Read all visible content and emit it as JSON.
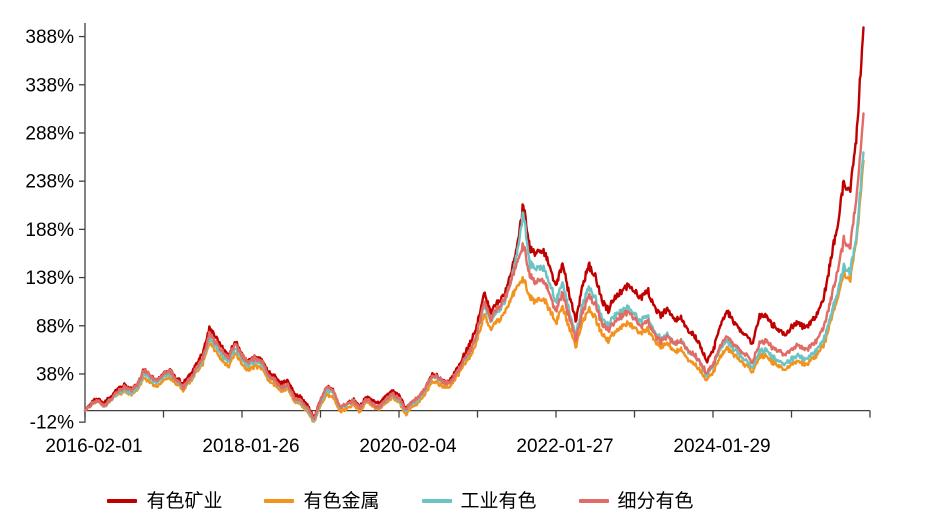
{
  "chart_data": {
    "type": "line",
    "title": "",
    "unit": "%",
    "y_axis": {
      "tick_labels": [
        "388%",
        "338%",
        "288%",
        "238%",
        "188%",
        "138%",
        "88%",
        "38%",
        "-12%"
      ],
      "tick_values": [
        388,
        338,
        288,
        238,
        188,
        138,
        88,
        38,
        -12
      ],
      "min": -12,
      "max": 400,
      "zero_baseline": true,
      "grid": false
    },
    "x_axis": {
      "tick_labels": [
        "2016-02-01",
        "2018-01-26",
        "2020-02-04",
        "2022-01-27",
        "2024-01-29"
      ],
      "labeled_tick_year_index": [
        0,
        2,
        4,
        6,
        8
      ],
      "minor_tick_count": 11,
      "range_note": "yearly minor ticks from 2016 to 2026, labels every second tick"
    },
    "sampling": {
      "start_month": "2016-02",
      "step": "monthly",
      "count": 120
    },
    "legend_position": "bottom",
    "series": [
      {
        "name": "有色矿业",
        "color": "#C00000",
        "values": [
          0,
          8,
          12,
          7,
          14,
          22,
          26,
          22,
          28,
          43,
          37,
          32,
          40,
          42,
          34,
          27,
          35,
          47,
          58,
          85,
          76,
          65,
          58,
          73,
          58,
          52,
          57,
          53,
          40,
          35,
          27,
          30,
          16,
          13,
          6,
          -8,
          12,
          26,
          21,
          4,
          8,
          12,
          4,
          14,
          9,
          7,
          14,
          20,
          16,
          2,
          10,
          14,
          24,
          38,
          36,
          30,
          33,
          44,
          58,
          70,
          90,
          122,
          100,
          112,
          118,
          140,
          168,
          216,
          170,
          162,
          166,
          150,
          128,
          152,
          120,
          92,
          128,
          150,
          140,
          115,
          105,
          118,
          124,
          130,
          122,
          116,
          124,
          106,
          98,
          104,
          94,
          97,
          86,
          80,
          70,
          52,
          62,
          88,
          103,
          94,
          84,
          78,
          68,
          96,
          99,
          90,
          84,
          79,
          87,
          94,
          86,
          91,
          100,
          118,
          155,
          190,
          235,
          228,
          290,
          400
        ]
      },
      {
        "name": "有色金属",
        "color": "#F2931D",
        "values": [
          0,
          5,
          9,
          4,
          11,
          17,
          21,
          17,
          23,
          35,
          30,
          25,
          32,
          34,
          27,
          20,
          28,
          38,
          48,
          70,
          63,
          53,
          47,
          61,
          48,
          42,
          47,
          43,
          31,
          26,
          19,
          22,
          9,
          7,
          0,
          -11,
          6,
          18,
          14,
          -1,
          2,
          6,
          -2,
          8,
          3,
          1,
          8,
          14,
          10,
          -3,
          5,
          9,
          18,
          30,
          28,
          23,
          26,
          36,
          48,
          56,
          74,
          100,
          84,
          94,
          100,
          115,
          128,
          138,
          118,
          112,
          116,
          104,
          90,
          108,
          86,
          66,
          92,
          106,
          98,
          80,
          73,
          82,
          86,
          90,
          84,
          79,
          84,
          72,
          66,
          70,
          62,
          65,
          56,
          50,
          43,
          32,
          39,
          55,
          64,
          58,
          52,
          47,
          40,
          56,
          58,
          52,
          47,
          43,
          48,
          53,
          47,
          51,
          57,
          68,
          92,
          115,
          142,
          138,
          180,
          262
        ]
      },
      {
        "name": "工业有色",
        "color": "#6BC4C3",
        "values": [
          0,
          6,
          10,
          5,
          12,
          19,
          23,
          19,
          25,
          38,
          33,
          28,
          35,
          37,
          30,
          23,
          31,
          42,
          52,
          76,
          68,
          58,
          52,
          66,
          52,
          46,
          51,
          47,
          35,
          30,
          23,
          26,
          13,
          10,
          3,
          -10,
          9,
          22,
          18,
          2,
          5,
          9,
          1,
          11,
          6,
          4,
          11,
          17,
          13,
          0,
          8,
          12,
          21,
          34,
          32,
          27,
          30,
          40,
          53,
          63,
          82,
          112,
          92,
          104,
          110,
          132,
          160,
          205,
          152,
          145,
          148,
          132,
          112,
          134,
          104,
          78,
          110,
          128,
          118,
          96,
          88,
          98,
          102,
          106,
          98,
          92,
          98,
          82,
          75,
          80,
          71,
          74,
          64,
          58,
          50,
          36,
          44,
          62,
          72,
          65,
          58,
          53,
          45,
          62,
          64,
          57,
          52,
          48,
          53,
          58,
          52,
          56,
          62,
          74,
          98,
          122,
          150,
          145,
          185,
          272
        ]
      },
      {
        "name": "细分有色",
        "color": "#E16C66",
        "values": [
          0,
          7,
          11,
          6,
          13,
          21,
          25,
          21,
          27,
          41,
          35,
          30,
          38,
          40,
          32,
          25,
          33,
          44,
          55,
          80,
          72,
          61,
          55,
          69,
          55,
          49,
          54,
          50,
          37,
          32,
          25,
          28,
          14,
          11,
          4,
          -9,
          10,
          24,
          19,
          3,
          6,
          10,
          2,
          12,
          7,
          5,
          12,
          18,
          14,
          1,
          9,
          13,
          22,
          35,
          33,
          28,
          31,
          41,
          55,
          64,
          84,
          115,
          94,
          106,
          112,
          130,
          150,
          172,
          140,
          132,
          136,
          122,
          104,
          124,
          98,
          74,
          102,
          118,
          110,
          90,
          82,
          92,
          97,
          101,
          94,
          88,
          94,
          80,
          73,
          78,
          70,
          73,
          63,
          58,
          50,
          38,
          46,
          66,
          78,
          71,
          64,
          59,
          51,
          70,
          73,
          66,
          61,
          57,
          62,
          68,
          62,
          66,
          73,
          88,
          115,
          145,
          178,
          172,
          225,
          310
        ]
      }
    ]
  }
}
